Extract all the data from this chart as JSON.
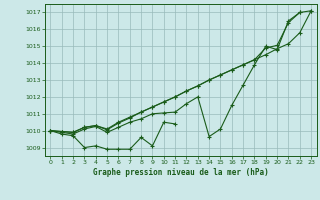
{
  "title": "Graphe pression niveau de la mer (hPa)",
  "bg_color": "#cce8e8",
  "grid_color": "#99bbbb",
  "line_color": "#1a5c1a",
  "xlim": [
    -0.5,
    23.5
  ],
  "ylim": [
    1008.5,
    1017.5
  ],
  "yticks": [
    1009,
    1010,
    1011,
    1012,
    1013,
    1014,
    1015,
    1016,
    1017
  ],
  "xticks": [
    0,
    1,
    2,
    3,
    4,
    5,
    6,
    7,
    8,
    9,
    10,
    11,
    12,
    13,
    14,
    15,
    16,
    17,
    18,
    19,
    20,
    21,
    22,
    23
  ],
  "s1_x": [
    0,
    1,
    2,
    3,
    4,
    5,
    6,
    7,
    8,
    9,
    10,
    11
  ],
  "s1_y": [
    1010.0,
    1009.8,
    1009.7,
    1009.0,
    1009.1,
    1008.9,
    1008.9,
    1008.9,
    1009.6,
    1009.1,
    1010.5,
    1010.4
  ],
  "s2_x": [
    0,
    1,
    2,
    3,
    4,
    5,
    6,
    7,
    8,
    9,
    10,
    11,
    12,
    13,
    14,
    15,
    16,
    17,
    18,
    19,
    20,
    21,
    22
  ],
  "s2_y": [
    1010.0,
    1009.9,
    1009.8,
    1010.1,
    1010.25,
    1009.9,
    1010.2,
    1010.5,
    1010.7,
    1011.0,
    1011.05,
    1011.1,
    1011.6,
    1012.0,
    1009.65,
    1010.1,
    1011.5,
    1012.7,
    1013.9,
    1015.0,
    1014.8,
    1016.5,
    1017.0
  ],
  "s3_x": [
    0,
    1,
    2,
    3,
    4,
    5,
    6,
    7,
    8,
    9,
    10,
    11,
    12,
    13,
    14,
    15,
    16,
    17,
    18,
    19,
    20,
    21,
    22,
    23
  ],
  "s3_y": [
    1010.0,
    1009.95,
    1009.9,
    1010.2,
    1010.3,
    1010.1,
    1010.5,
    1010.8,
    1011.1,
    1011.4,
    1011.7,
    1012.0,
    1012.35,
    1012.65,
    1013.0,
    1013.3,
    1013.6,
    1013.9,
    1014.2,
    1014.5,
    1014.85,
    1015.15,
    1015.8,
    1017.1
  ],
  "s4_x": [
    0,
    1,
    2,
    3,
    4,
    5,
    6,
    7,
    8,
    9,
    10,
    11,
    12,
    13,
    14,
    15,
    16,
    17,
    18,
    19,
    20,
    21,
    22,
    23
  ],
  "s4_y": [
    1010.0,
    1009.95,
    1009.9,
    1010.2,
    1010.3,
    1010.05,
    1010.45,
    1010.75,
    1011.1,
    1011.4,
    1011.7,
    1012.0,
    1012.35,
    1012.65,
    1013.0,
    1013.3,
    1013.6,
    1013.9,
    1014.2,
    1014.9,
    1015.05,
    1016.4,
    1017.0,
    1017.1
  ]
}
